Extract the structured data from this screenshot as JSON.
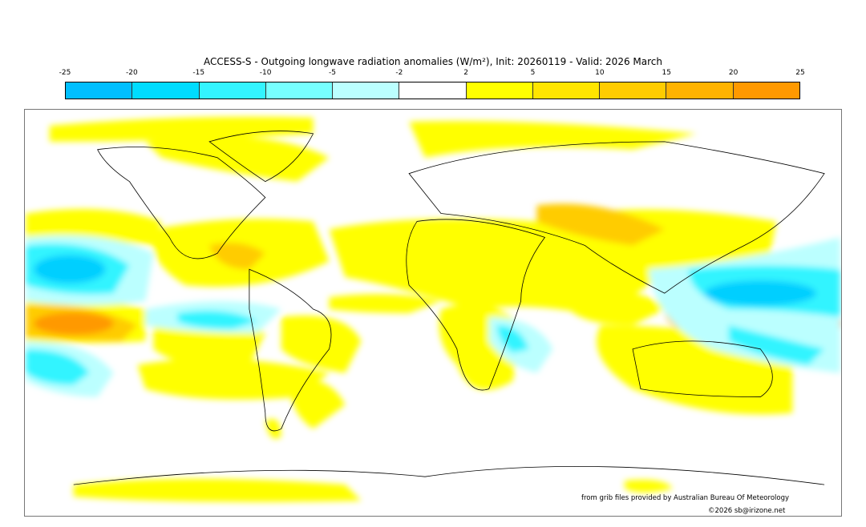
{
  "title": "ACCESS-S - Outgoing longwave radiation anomalies (W/m²), Init: 20260119 - Valid: 2026 March",
  "colorbar": {
    "ticks": [
      "-25",
      "-20",
      "-15",
      "-10",
      "-5",
      "-2",
      "2",
      "5",
      "10",
      "15",
      "20",
      "25"
    ],
    "colors": [
      "#00bfff",
      "#00dcff",
      "#33f4ff",
      "#77ffff",
      "#bbffff",
      "#ffffff",
      "#ffff00",
      "#ffe500",
      "#ffcc00",
      "#ffb300",
      "#ff9900"
    ]
  },
  "credits": {
    "source": "from grib files provided by Australian Bureau Of Meteorology",
    "copyright": "©2026 sb@irizone.net"
  }
}
